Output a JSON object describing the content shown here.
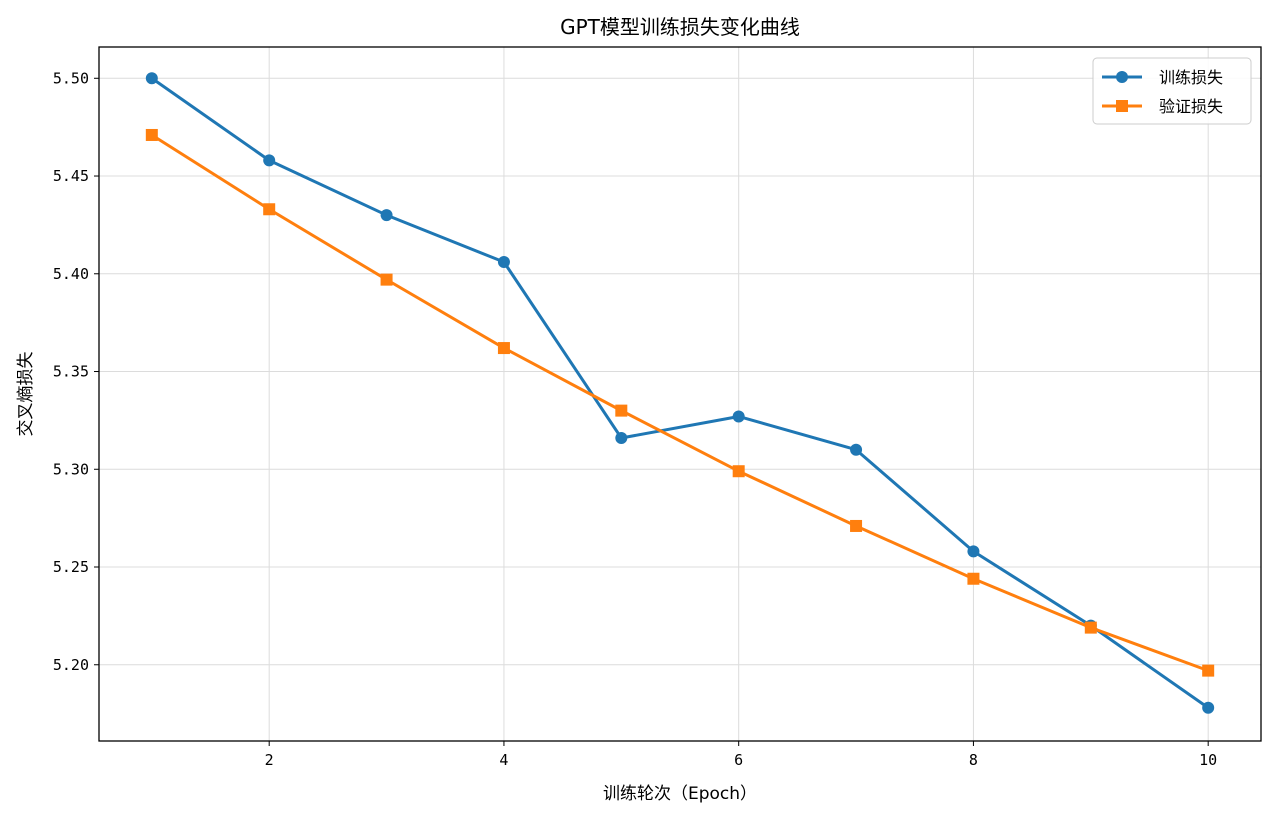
{
  "chart_data": {
    "type": "line",
    "title": "GPT模型训练损失变化曲线",
    "xlabel": "训练轮次（Epoch）",
    "ylabel": "交叉熵损失",
    "xlim": [
      0.55,
      10.45
    ],
    "ylim": [
      5.161,
      5.516
    ],
    "xticks": [
      2,
      4,
      6,
      8,
      10
    ],
    "yticks": [
      5.2,
      5.25,
      5.3,
      5.35,
      5.4,
      5.45,
      5.5
    ],
    "grid": true,
    "legend_position": "top-right",
    "x": [
      1,
      2,
      3,
      4,
      5,
      6,
      7,
      8,
      9,
      10
    ],
    "series": [
      {
        "name": "训练损失",
        "color": "#1f77b4",
        "marker": "circle",
        "values": [
          5.5,
          5.458,
          5.43,
          5.406,
          5.316,
          5.327,
          5.31,
          5.258,
          5.22,
          5.178
        ]
      },
      {
        "name": "验证损失",
        "color": "#ff7f0e",
        "marker": "square",
        "values": [
          5.471,
          5.433,
          5.397,
          5.362,
          5.33,
          5.299,
          5.271,
          5.244,
          5.219,
          5.197
        ]
      }
    ]
  }
}
